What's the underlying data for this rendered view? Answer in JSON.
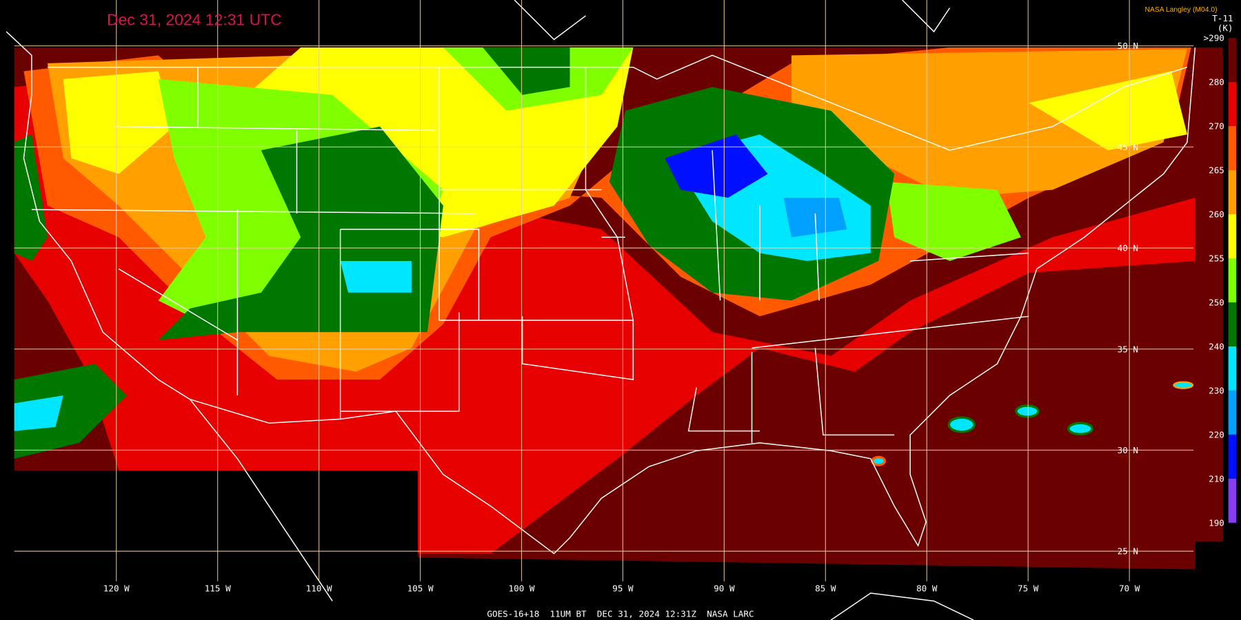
{
  "title": "Dec 31, 2024 12:31 UTC",
  "credit": "NASA Langley (M04.0)",
  "colorbar": {
    "title": "T-11",
    "unit": "(K)",
    "labels": [
      ">290",
      "280",
      "270",
      "265",
      "260",
      "255",
      "250",
      "240",
      "230",
      "220",
      "210",
      "190"
    ],
    "colors": [
      "#6b0000",
      "#e60000",
      "#ff5a00",
      "#ffa000",
      "#ffff00",
      "#80ff00",
      "#007800",
      "#00e6ff",
      "#00a0ff",
      "#0010ff",
      "#8a3cf0"
    ]
  },
  "latitude_labels": [
    "50 N",
    "45 N",
    "40 N",
    "35 N",
    "30 N",
    "25 N"
  ],
  "longitude_labels": [
    "120 W",
    "115 W",
    "110 W",
    "105 W",
    "100 W",
    "95 W",
    "90 W",
    "85 W",
    "80 W",
    "75 W",
    "70 W"
  ],
  "caption": "GOES-16+18  11UM BT  DEC 31, 2024 12:31Z  NASA LARC"
}
